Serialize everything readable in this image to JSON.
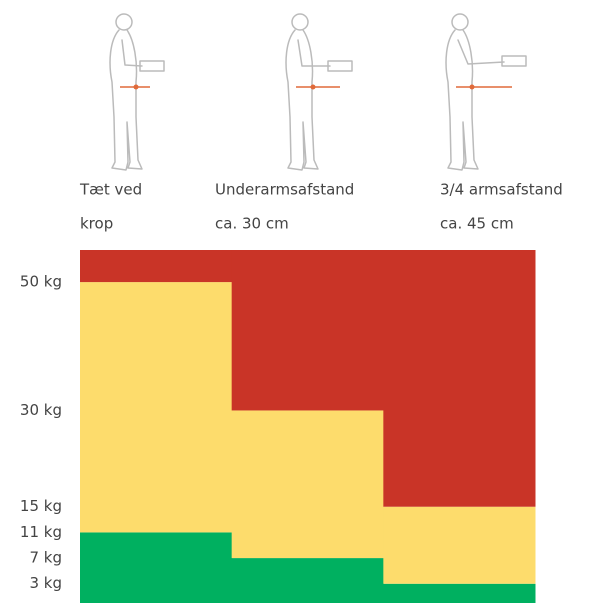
{
  "chart_data": {
    "type": "stacked-bar",
    "categories": [
      [
        "Tæt ved",
        "krop"
      ],
      [
        "Underarmsafstand",
        "ca. 30 cm"
      ],
      [
        "3/4 armsafstand",
        "ca. 45 cm"
      ]
    ],
    "series": [
      {
        "color": "#00b060",
        "values": [
          11,
          7,
          3
        ]
      },
      {
        "color": "#fddc6c",
        "values": [
          39,
          23,
          12
        ]
      },
      {
        "color": "#c93427",
        "values": [
          5,
          25,
          40
        ]
      }
    ],
    "ylim": [
      0,
      55
    ],
    "yticks": [
      {
        "value": 50,
        "label": "50 kg"
      },
      {
        "value": 30,
        "label": "30 kg"
      },
      {
        "value": 15,
        "label": "15 kg"
      },
      {
        "value": 11,
        "label": "11 kg"
      },
      {
        "value": 7,
        "label": "7 kg"
      },
      {
        "value": 3,
        "label": "3 kg"
      }
    ]
  }
}
